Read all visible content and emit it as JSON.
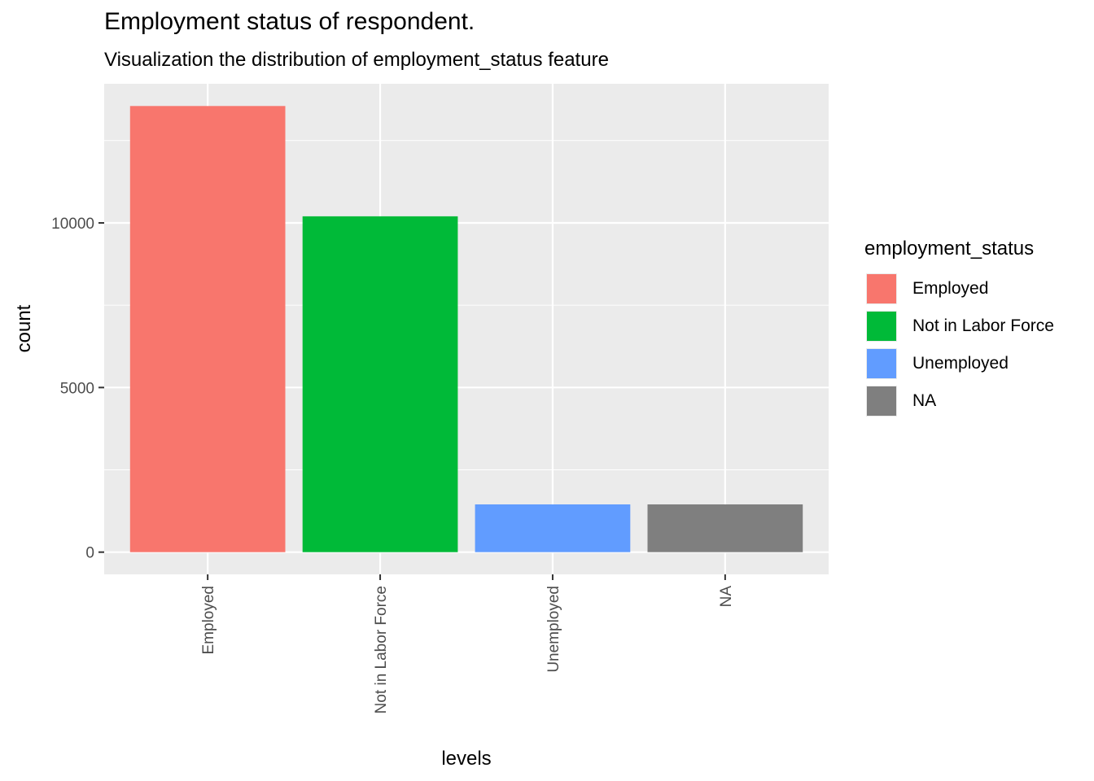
{
  "chart_data": {
    "type": "bar",
    "title": "Employment status of respondent.",
    "subtitle": "Visualization the distribution of employment_status feature",
    "xlabel": "levels",
    "ylabel": "count",
    "categories": [
      "Employed",
      "Not in Labor Force",
      "Unemployed",
      "NA"
    ],
    "values": [
      13550,
      10200,
      1450,
      1450
    ],
    "colors": [
      "#F8766D",
      "#00BA38",
      "#619CFF",
      "#7F7F7F"
    ],
    "yticks": [
      0,
      5000,
      10000
    ],
    "ytick_labels": [
      "0",
      "5000",
      "10000"
    ],
    "ylim": [
      -675,
      14225
    ],
    "grid": true,
    "legend": {
      "title": "employment_status",
      "position": "right",
      "items": [
        "Employed",
        "Not in Labor Force",
        "Unemployed",
        "NA"
      ]
    }
  }
}
